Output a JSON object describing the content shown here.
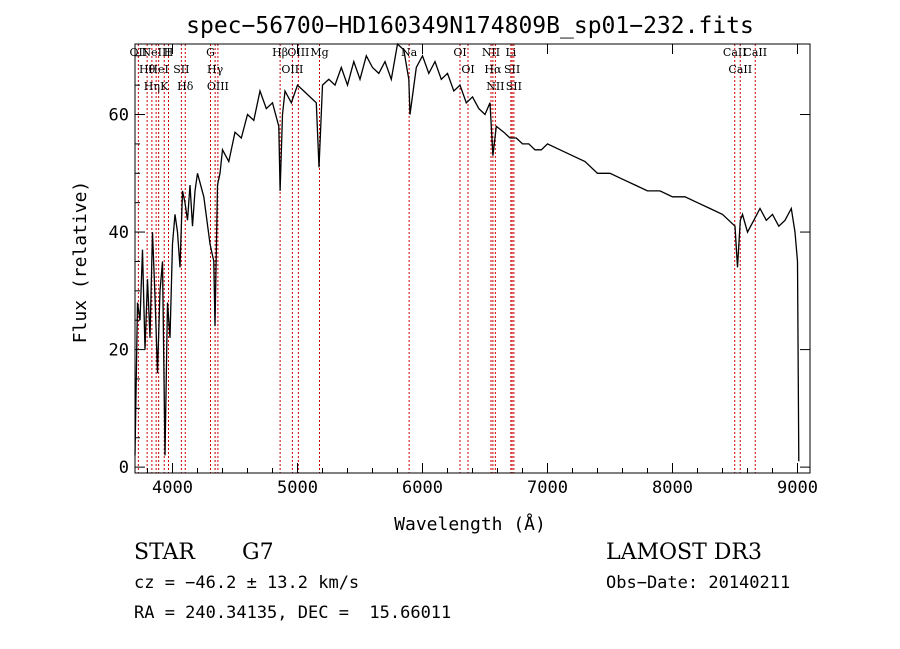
{
  "chart_data": {
    "type": "line",
    "title": "spec−56700−HD160349N174809B_sp01−232.fits",
    "xlabel": "Wavelength (Å)",
    "ylabel": "Flux (relative)",
    "xlim": [
      3700,
      9100
    ],
    "ylim": [
      -1,
      72
    ],
    "xticks": [
      4000,
      5000,
      6000,
      7000,
      8000,
      9000
    ],
    "yticks": [
      0,
      20,
      40,
      60
    ],
    "series": [
      {
        "name": "spectrum",
        "x": [
          3700,
          3720,
          3740,
          3760,
          3780,
          3800,
          3820,
          3840,
          3860,
          3880,
          3900,
          3920,
          3940,
          3960,
          3980,
          4000,
          4020,
          4040,
          4060,
          4080,
          4100,
          4120,
          4140,
          4160,
          4180,
          4200,
          4250,
          4300,
          4330,
          4340,
          4360,
          4380,
          4400,
          4450,
          4500,
          4550,
          4600,
          4650,
          4700,
          4750,
          4800,
          4850,
          4861,
          4880,
          4900,
          4950,
          5000,
          5050,
          5100,
          5150,
          5172,
          5200,
          5250,
          5300,
          5350,
          5400,
          5450,
          5500,
          5550,
          5600,
          5650,
          5700,
          5750,
          5800,
          5850,
          5890,
          5900,
          5950,
          6000,
          6050,
          6100,
          6150,
          6200,
          6250,
          6300,
          6350,
          6400,
          6450,
          6500,
          6540,
          6563,
          6590,
          6650,
          6700,
          6750,
          6800,
          6850,
          6900,
          6950,
          7000,
          7100,
          7200,
          7300,
          7400,
          7500,
          7600,
          7700,
          7800,
          7900,
          8000,
          8100,
          8200,
          8300,
          8400,
          8450,
          8500,
          8520,
          8542,
          8560,
          8600,
          8650,
          8700,
          8750,
          8800,
          8850,
          8900,
          8950,
          8980,
          9000,
          9010
        ],
        "y": [
          2,
          28,
          25,
          37,
          20,
          32,
          22,
          40,
          29,
          16,
          30,
          35,
          2,
          28,
          22,
          38,
          43,
          40,
          34,
          47,
          45,
          42,
          48,
          41,
          47,
          50,
          46,
          38,
          35,
          24,
          48,
          50,
          54,
          52,
          57,
          56,
          60,
          59,
          64,
          61,
          62,
          58,
          47,
          60,
          64,
          62,
          65,
          64,
          63,
          62,
          51,
          65,
          66,
          65,
          68,
          65,
          69,
          66,
          70,
          68,
          67,
          69,
          66,
          72,
          71,
          66,
          60,
          68,
          70,
          67,
          69,
          66,
          67,
          64,
          65,
          62,
          63,
          61,
          60,
          62,
          53,
          58,
          57,
          56,
          56,
          55,
          55,
          54,
          54,
          55,
          54,
          53,
          52,
          50,
          50,
          49,
          48,
          47,
          47,
          46,
          46,
          45,
          44,
          43,
          42,
          41,
          34,
          42,
          43,
          40,
          42,
          44,
          42,
          43,
          41,
          42,
          44,
          40,
          35,
          1
        ]
      }
    ],
    "line_markers": [
      {
        "wave": 3727,
        "label": "OII"
      },
      {
        "wave": 3797,
        "label": "Hθ"
      },
      {
        "wave": 3835,
        "label": "Hη"
      },
      {
        "wave": 3869,
        "label": "NeIII"
      },
      {
        "wave": 3889,
        "label": "HeI"
      },
      {
        "wave": 3934,
        "label": "K"
      },
      {
        "wave": 3968,
        "label": "H"
      },
      {
        "wave": 4071,
        "label": "SII"
      },
      {
        "wave": 4102,
        "label": "Hδ"
      },
      {
        "wave": 4304,
        "label": "G"
      },
      {
        "wave": 4341,
        "label": "Hγ"
      },
      {
        "wave": 4363,
        "label": "OIII"
      },
      {
        "wave": 4861,
        "label": "Hβ"
      },
      {
        "wave": 4959,
        "label": "OIII"
      },
      {
        "wave": 5007,
        "label": "OIII"
      },
      {
        "wave": 5176,
        "label": "Mg"
      },
      {
        "wave": 5893,
        "label": "Na"
      },
      {
        "wave": 6300,
        "label": "OI"
      },
      {
        "wave": 6364,
        "label": "OI"
      },
      {
        "wave": 6548,
        "label": "NII"
      },
      {
        "wave": 6563,
        "label": "Hα"
      },
      {
        "wave": 6583,
        "label": "NII"
      },
      {
        "wave": 6707,
        "label": "Li"
      },
      {
        "wave": 6717,
        "label": "SII"
      },
      {
        "wave": 6731,
        "label": "SII"
      },
      {
        "wave": 8498,
        "label": "CaII"
      },
      {
        "wave": 8542,
        "label": "CaII"
      },
      {
        "wave": 8662,
        "label": "CaII"
      }
    ]
  },
  "info": {
    "class": "STAR",
    "subclass": "G7",
    "survey": "LAMOST DR3",
    "cz": "cz = −46.2 ± 13.2 km/s",
    "obs_date": "Obs−Date: 20140211",
    "coords": "RA = 240.34135, DEC =  15.66011"
  },
  "colors": {
    "line": "#000000",
    "marker": "#cc0000",
    "axes": "#000000"
  }
}
